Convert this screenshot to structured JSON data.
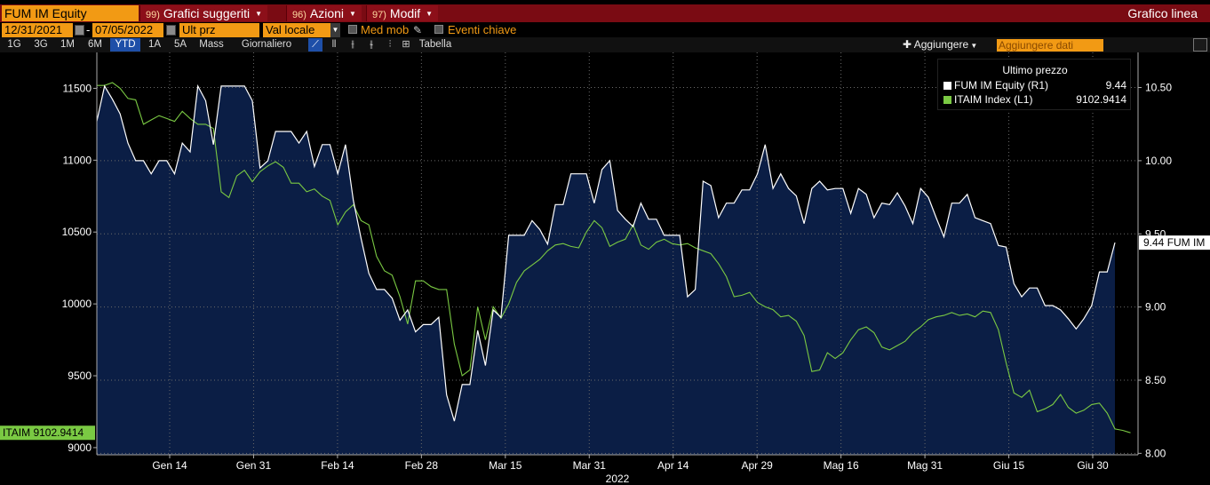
{
  "titlebar": {
    "ticker": "FUM IM Equity",
    "menus": [
      {
        "num": "99)",
        "label": "Grafici suggeriti"
      },
      {
        "num": "96)",
        "label": "Azioni"
      },
      {
        "num": "97)",
        "label": "Modif"
      }
    ],
    "chart_kind": "Grafico linea"
  },
  "controls": {
    "start_date": "12/31/2021",
    "end_date": "07/05/2022",
    "price_field": "Ult prz",
    "currency": "Val locale",
    "moving_avg": "Med mob",
    "key_events": "Eventi chiave"
  },
  "toolbar": {
    "periods": [
      "1G",
      "3G",
      "1M",
      "6M",
      "YTD",
      "1A",
      "5A",
      "Mass",
      "Giornaliero"
    ],
    "active_period": "YTD",
    "table_label": "Tabella",
    "add_label": "Aggiungere",
    "add_data_placeholder": "Aggiungere dati"
  },
  "legend": {
    "title": "Ultimo prezzo",
    "entries": [
      {
        "label": "FUM IM Equity  (R1)",
        "value": "9.44",
        "color": "#ffffff"
      },
      {
        "label": "ITAIM Index  (L1)",
        "value": "9102.9414",
        "color": "#7ac943"
      }
    ]
  },
  "chart_data": {
    "type": "line",
    "x_tick_labels": [
      "Gen 14",
      "Gen 31",
      "Feb 14",
      "Feb 28",
      "Mar 15",
      "Mar 31",
      "Apr 14",
      "Apr 29",
      "Mag 16",
      "Mag 31",
      "Giu 15",
      "Giu 30"
    ],
    "x_year_label": "2022",
    "left_axis": {
      "ticks": [
        9000,
        9500,
        10000,
        10500,
        11000,
        11500
      ],
      "ylim": [
        8950,
        11750
      ]
    },
    "right_axis": {
      "ticks": [
        "8.00",
        "8.50",
        "9.00",
        "9.50",
        "10.00",
        "10.50"
      ],
      "ylim": [
        7.99,
        10.74
      ]
    },
    "left_badge": "ITAIM 9102.9414",
    "right_badge": "9.44 FUM IM",
    "grid": true,
    "series": [
      {
        "name": "FUM IM Equity",
        "axis": "right",
        "color": "#ffffff",
        "fill": "#0b1e45",
        "values": [
          10.27,
          10.51,
          10.42,
          10.32,
          10.12,
          10.0,
          10.0,
          9.91,
          10.0,
          10.0,
          9.91,
          10.12,
          10.06,
          10.51,
          10.41,
          10.11,
          10.51,
          10.51,
          10.51,
          10.51,
          10.41,
          9.95,
          10.0,
          10.2,
          10.2,
          10.2,
          10.12,
          10.2,
          9.96,
          10.11,
          10.11,
          9.91,
          10.11,
          9.73,
          9.47,
          9.23,
          9.12,
          9.12,
          9.06,
          8.91,
          8.98,
          8.83,
          8.88,
          8.88,
          8.93,
          8.4,
          8.22,
          8.47,
          8.47,
          8.84,
          8.6,
          8.98,
          8.93,
          9.49,
          9.49,
          9.49,
          9.59,
          9.53,
          9.43,
          9.7,
          9.7,
          9.91,
          9.91,
          9.91,
          9.71,
          9.94,
          10.0,
          9.66,
          9.6,
          9.55,
          9.71,
          9.6,
          9.6,
          9.49,
          9.49,
          9.49,
          9.07,
          9.12,
          9.86,
          9.83,
          9.61,
          9.71,
          9.71,
          9.8,
          9.8,
          9.91,
          10.11,
          9.81,
          9.91,
          9.81,
          9.76,
          9.57,
          9.81,
          9.86,
          9.8,
          9.81,
          9.81,
          9.64,
          9.81,
          9.77,
          9.61,
          9.71,
          9.7,
          9.78,
          9.69,
          9.57,
          9.81,
          9.75,
          9.61,
          9.48,
          9.71,
          9.71,
          9.77,
          9.61,
          9.59,
          9.57,
          9.42,
          9.41,
          9.16,
          9.07,
          9.13,
          9.13,
          9.01,
          9.01,
          8.98,
          8.92,
          8.85,
          8.92,
          9.01,
          9.24,
          9.24,
          9.44
        ]
      },
      {
        "name": "ITAIM Index",
        "axis": "left",
        "color": "#7ac943",
        "values": [
          11520,
          11520,
          11540,
          11500,
          11430,
          11420,
          11250,
          11280,
          11310,
          11290,
          11270,
          11340,
          11290,
          11250,
          11250,
          11220,
          10780,
          10740,
          10890,
          10930,
          10850,
          10920,
          10960,
          10990,
          10950,
          10840,
          10840,
          10780,
          10800,
          10750,
          10720,
          10550,
          10640,
          10690,
          10580,
          10550,
          10330,
          10230,
          10200,
          10050,
          9860,
          10160,
          10160,
          10120,
          10100,
          10100,
          9720,
          9500,
          9540,
          9980,
          9750,
          9980,
          9900,
          10000,
          10150,
          10230,
          10270,
          10310,
          10370,
          10410,
          10420,
          10400,
          10390,
          10500,
          10580,
          10530,
          10400,
          10430,
          10450,
          10550,
          10410,
          10380,
          10430,
          10450,
          10420,
          10410,
          10420,
          10390,
          10370,
          10350,
          10280,
          10190,
          10050,
          10060,
          10080,
          10010,
          9980,
          9960,
          9910,
          9920,
          9880,
          9780,
          9530,
          9540,
          9660,
          9620,
          9660,
          9750,
          9820,
          9840,
          9800,
          9700,
          9680,
          9710,
          9740,
          9800,
          9840,
          9890,
          9910,
          9920,
          9940,
          9920,
          9930,
          9910,
          9950,
          9940,
          9820,
          9590,
          9380,
          9350,
          9400,
          9250,
          9270,
          9300,
          9370,
          9280,
          9240,
          9260,
          9300,
          9310,
          9240,
          9130,
          9120,
          9103
        ]
      }
    ]
  }
}
